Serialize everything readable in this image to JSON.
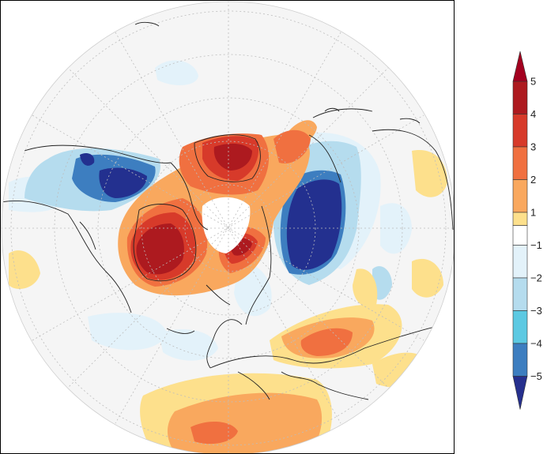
{
  "colorbar": {
    "labels": [
      "5",
      "4",
      "3",
      "2",
      "1",
      "−1",
      "−2",
      "−3",
      "−4",
      "−5"
    ],
    "bins": [
      {
        "from": 4,
        "to": 5,
        "color": "#ad1a1f"
      },
      {
        "from": 3,
        "to": 4,
        "color": "#d73a2a"
      },
      {
        "from": 2,
        "to": 3,
        "color": "#f07040"
      },
      {
        "from": 1,
        "to": 2,
        "color": "#f9a85e"
      },
      {
        "from": 0.5,
        "to": 1,
        "color": "#fde08c"
      },
      {
        "from": -0.5,
        "to": 0.5,
        "color": "#ffffff"
      },
      {
        "from": -1,
        "to": -0.5,
        "color": "#e3f2fa"
      },
      {
        "from": -2,
        "to": -1,
        "color": "#b5dcee"
      },
      {
        "from": -3,
        "to": -2,
        "color": "#5cc9e2"
      },
      {
        "from": -4,
        "to": -3,
        "color": "#3d7ec0"
      },
      {
        "from": -5,
        "to": -4,
        "color": "#23308f"
      }
    ],
    "max_arrow_color": "#a3001f",
    "min_arrow_color": "#26308e"
  },
  "map": {
    "projection": "north-polar-stereographic",
    "land_outline_color": "#222222",
    "graticule_color": "#bdbdbd",
    "background_color": "#f5f5f5"
  }
}
